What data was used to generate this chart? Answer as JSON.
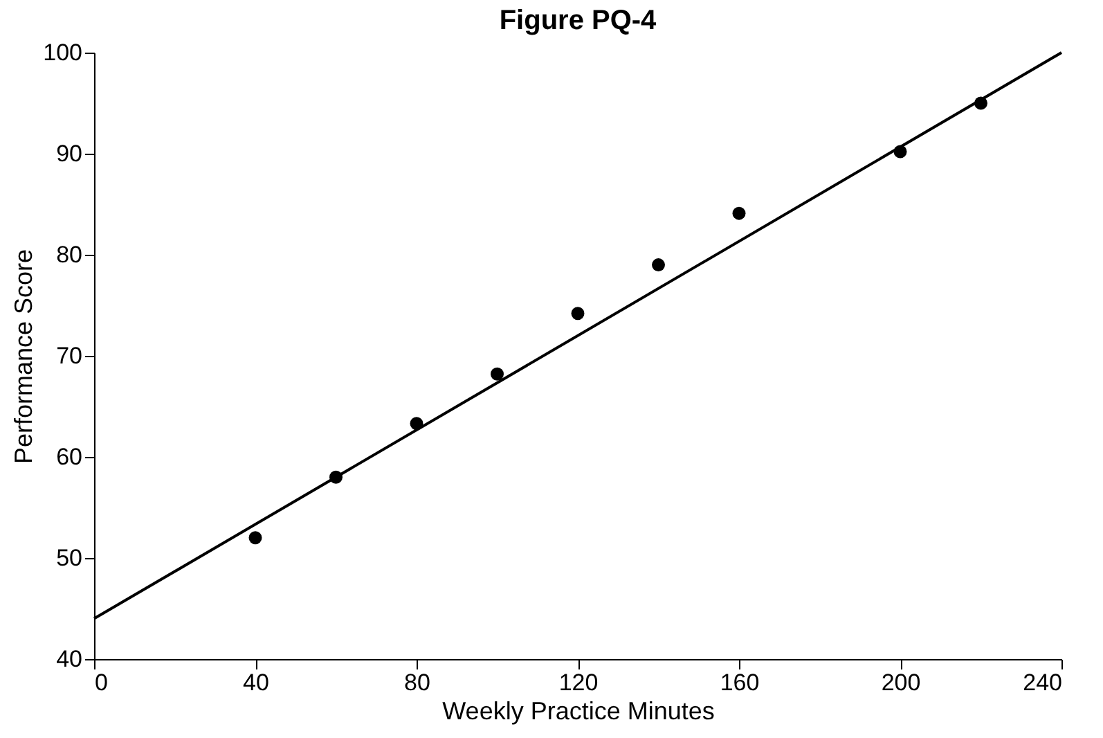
{
  "chart_data": {
    "type": "scatter",
    "title": "Figure PQ-4",
    "xlabel": "Weekly Practice Minutes",
    "ylabel": "Performance Score",
    "series": [
      {
        "marker": "circle",
        "color": "#000000",
        "x": [
          40,
          60,
          80,
          100,
          120,
          140,
          160,
          200,
          220
        ],
        "values": [
          52,
          58,
          63.3,
          68.2,
          74.2,
          79,
          84.1,
          90.2,
          95
        ]
      },
      {
        "type": "line",
        "marker": "none",
        "color": "#000000",
        "x": [
          0,
          240
        ],
        "values": [
          44,
          100
        ]
      }
    ],
    "xlim": [
      0,
      240
    ],
    "xticks": [
      0,
      40,
      80,
      120,
      160,
      200,
      240
    ],
    "ylim": [
      40,
      100
    ],
    "yticks": [
      40,
      50,
      60,
      70,
      80,
      90,
      100
    ],
    "grid": false,
    "line_style": "solid"
  }
}
